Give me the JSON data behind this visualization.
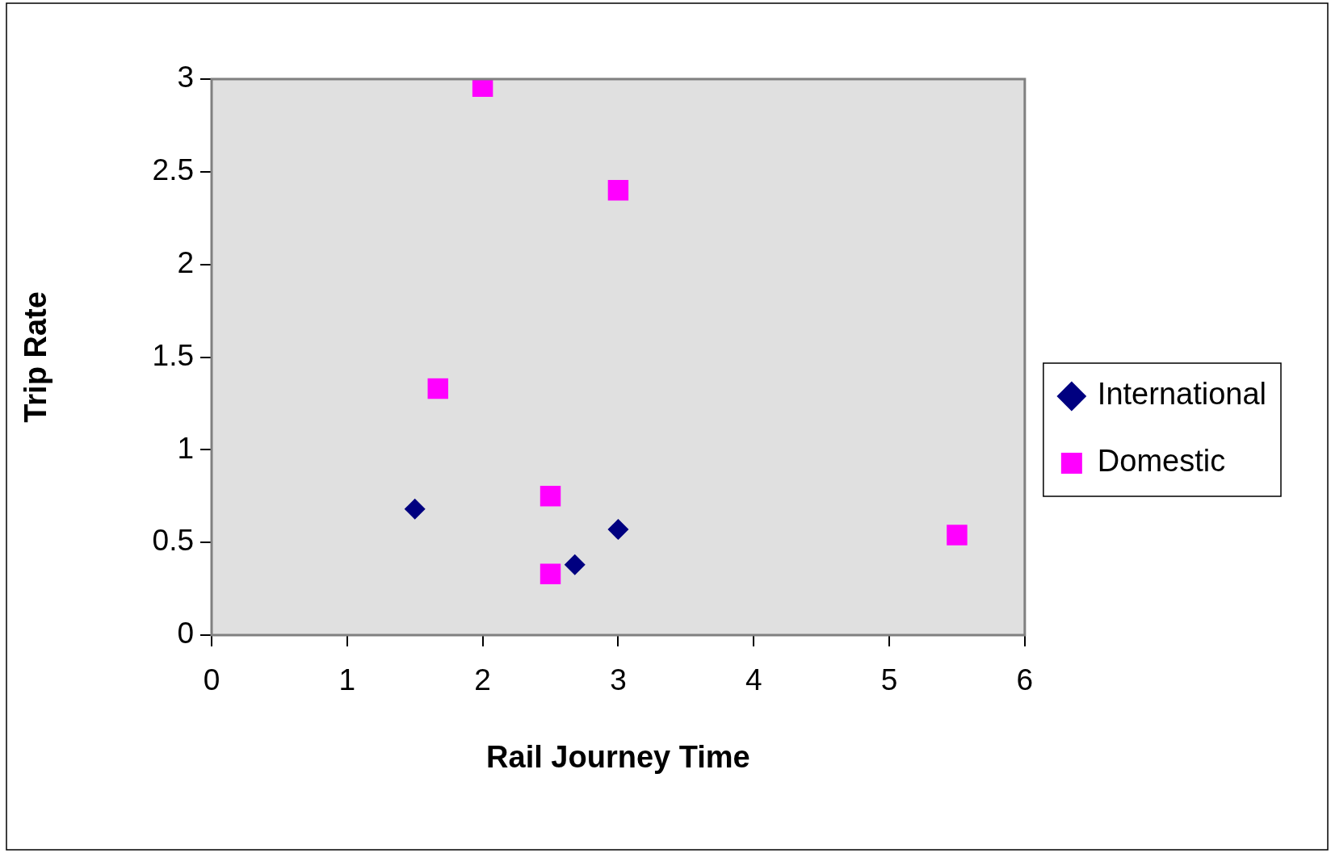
{
  "chart_data": {
    "type": "scatter",
    "xlabel": "Rail Journey Time",
    "ylabel": "Trip Rate",
    "xlim": [
      0,
      6
    ],
    "xticks": [
      0,
      1,
      2,
      3,
      4,
      5,
      6
    ],
    "ylim": [
      0,
      3
    ],
    "yticks": [
      0,
      0.5,
      1,
      1.5,
      2,
      2.5,
      3
    ],
    "grid": false,
    "legend": "right",
    "series": [
      {
        "name": "International",
        "color": "#000080",
        "marker": "diamond",
        "x": [
          1.5,
          2.68,
          3.0
        ],
        "values": [
          0.68,
          0.38,
          0.57
        ]
      },
      {
        "name": "Domestic",
        "color": "#ff00ff",
        "marker": "square",
        "x": [
          2.0,
          3.0,
          1.67,
          2.5,
          2.5,
          5.5
        ],
        "values": [
          2.96,
          2.4,
          1.33,
          0.75,
          0.33,
          0.54
        ]
      }
    ]
  }
}
